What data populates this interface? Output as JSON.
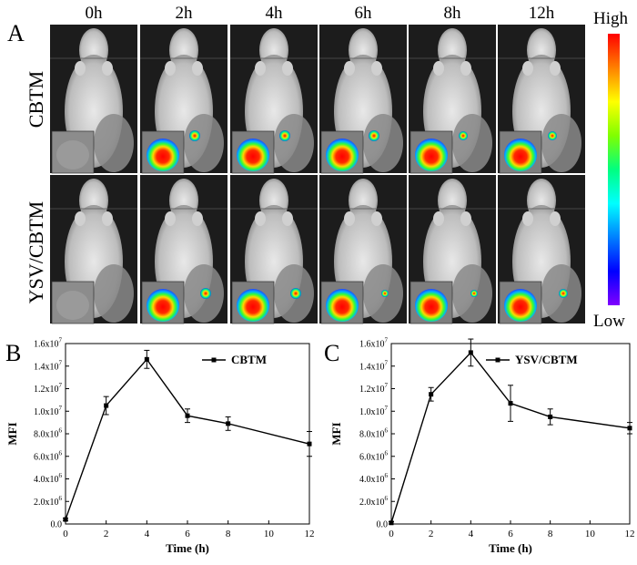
{
  "panel_a": {
    "letter": "A",
    "time_labels": [
      "0h",
      "2h",
      "4h",
      "6h",
      "8h",
      "12h"
    ],
    "row_labels": [
      "CBTM",
      "YSV/CBTM"
    ],
    "scale_high": "High",
    "scale_low": "Low",
    "colors": {
      "bg": "#1a1a1a",
      "scale": [
        "#ff0000",
        "#ffa500",
        "#ffff00",
        "#00ff00",
        "#00ffff",
        "#0000ff",
        "#8000ff"
      ]
    }
  },
  "chart_data": [
    {
      "type": "line",
      "panel": "B",
      "legend": "CBTM",
      "xlabel": "Time (h)",
      "ylabel": "MFI",
      "x": [
        0,
        2,
        4,
        6,
        8,
        12
      ],
      "values": [
        400000.0,
        10500000.0,
        14600000.0,
        9600000.0,
        8900000.0,
        7100000.0
      ],
      "errors": [
        100000.0,
        800000.0,
        800000.0,
        600000.0,
        600000.0,
        1100000.0
      ],
      "xlim": [
        0,
        12
      ],
      "ylim": [
        0,
        16000000.0
      ],
      "xticks": [
        "0",
        "2",
        "4",
        "6",
        "8",
        "10",
        "12"
      ],
      "yticks": [
        {
          "m": "0.0",
          "e": ""
        },
        {
          "m": "2.0x10",
          "e": "6"
        },
        {
          "m": "4.0x10",
          "e": "6"
        },
        {
          "m": "6.0x10",
          "e": "6"
        },
        {
          "m": "8.0x10",
          "e": "6"
        },
        {
          "m": "1.0x10",
          "e": "7"
        },
        {
          "m": "1.2x10",
          "e": "7"
        },
        {
          "m": "1.4x10",
          "e": "7"
        },
        {
          "m": "1.6x10",
          "e": "7"
        }
      ]
    },
    {
      "type": "line",
      "panel": "C",
      "legend": "YSV/CBTM",
      "xlabel": "Time (h)",
      "ylabel": "MFI",
      "x": [
        0,
        2,
        4,
        6,
        8,
        12
      ],
      "values": [
        100000.0,
        11500000.0,
        15200000.0,
        10700000.0,
        9500000.0,
        8500000.0
      ],
      "errors": [
        100000.0,
        600000.0,
        1200000.0,
        1600000.0,
        700000.0,
        500000.0
      ],
      "xlim": [
        0,
        12
      ],
      "ylim": [
        0,
        16000000.0
      ],
      "xticks": [
        "0",
        "2",
        "4",
        "6",
        "8",
        "10",
        "12"
      ],
      "yticks": [
        {
          "m": "0.0",
          "e": ""
        },
        {
          "m": "2.0x10",
          "e": "6"
        },
        {
          "m": "4.0x10",
          "e": "6"
        },
        {
          "m": "6.0x10",
          "e": "6"
        },
        {
          "m": "8.0x10",
          "e": "6"
        },
        {
          "m": "1.0x10",
          "e": "7"
        },
        {
          "m": "1.2x10",
          "e": "7"
        },
        {
          "m": "1.4x10",
          "e": "7"
        },
        {
          "m": "1.6x10",
          "e": "7"
        }
      ]
    }
  ]
}
